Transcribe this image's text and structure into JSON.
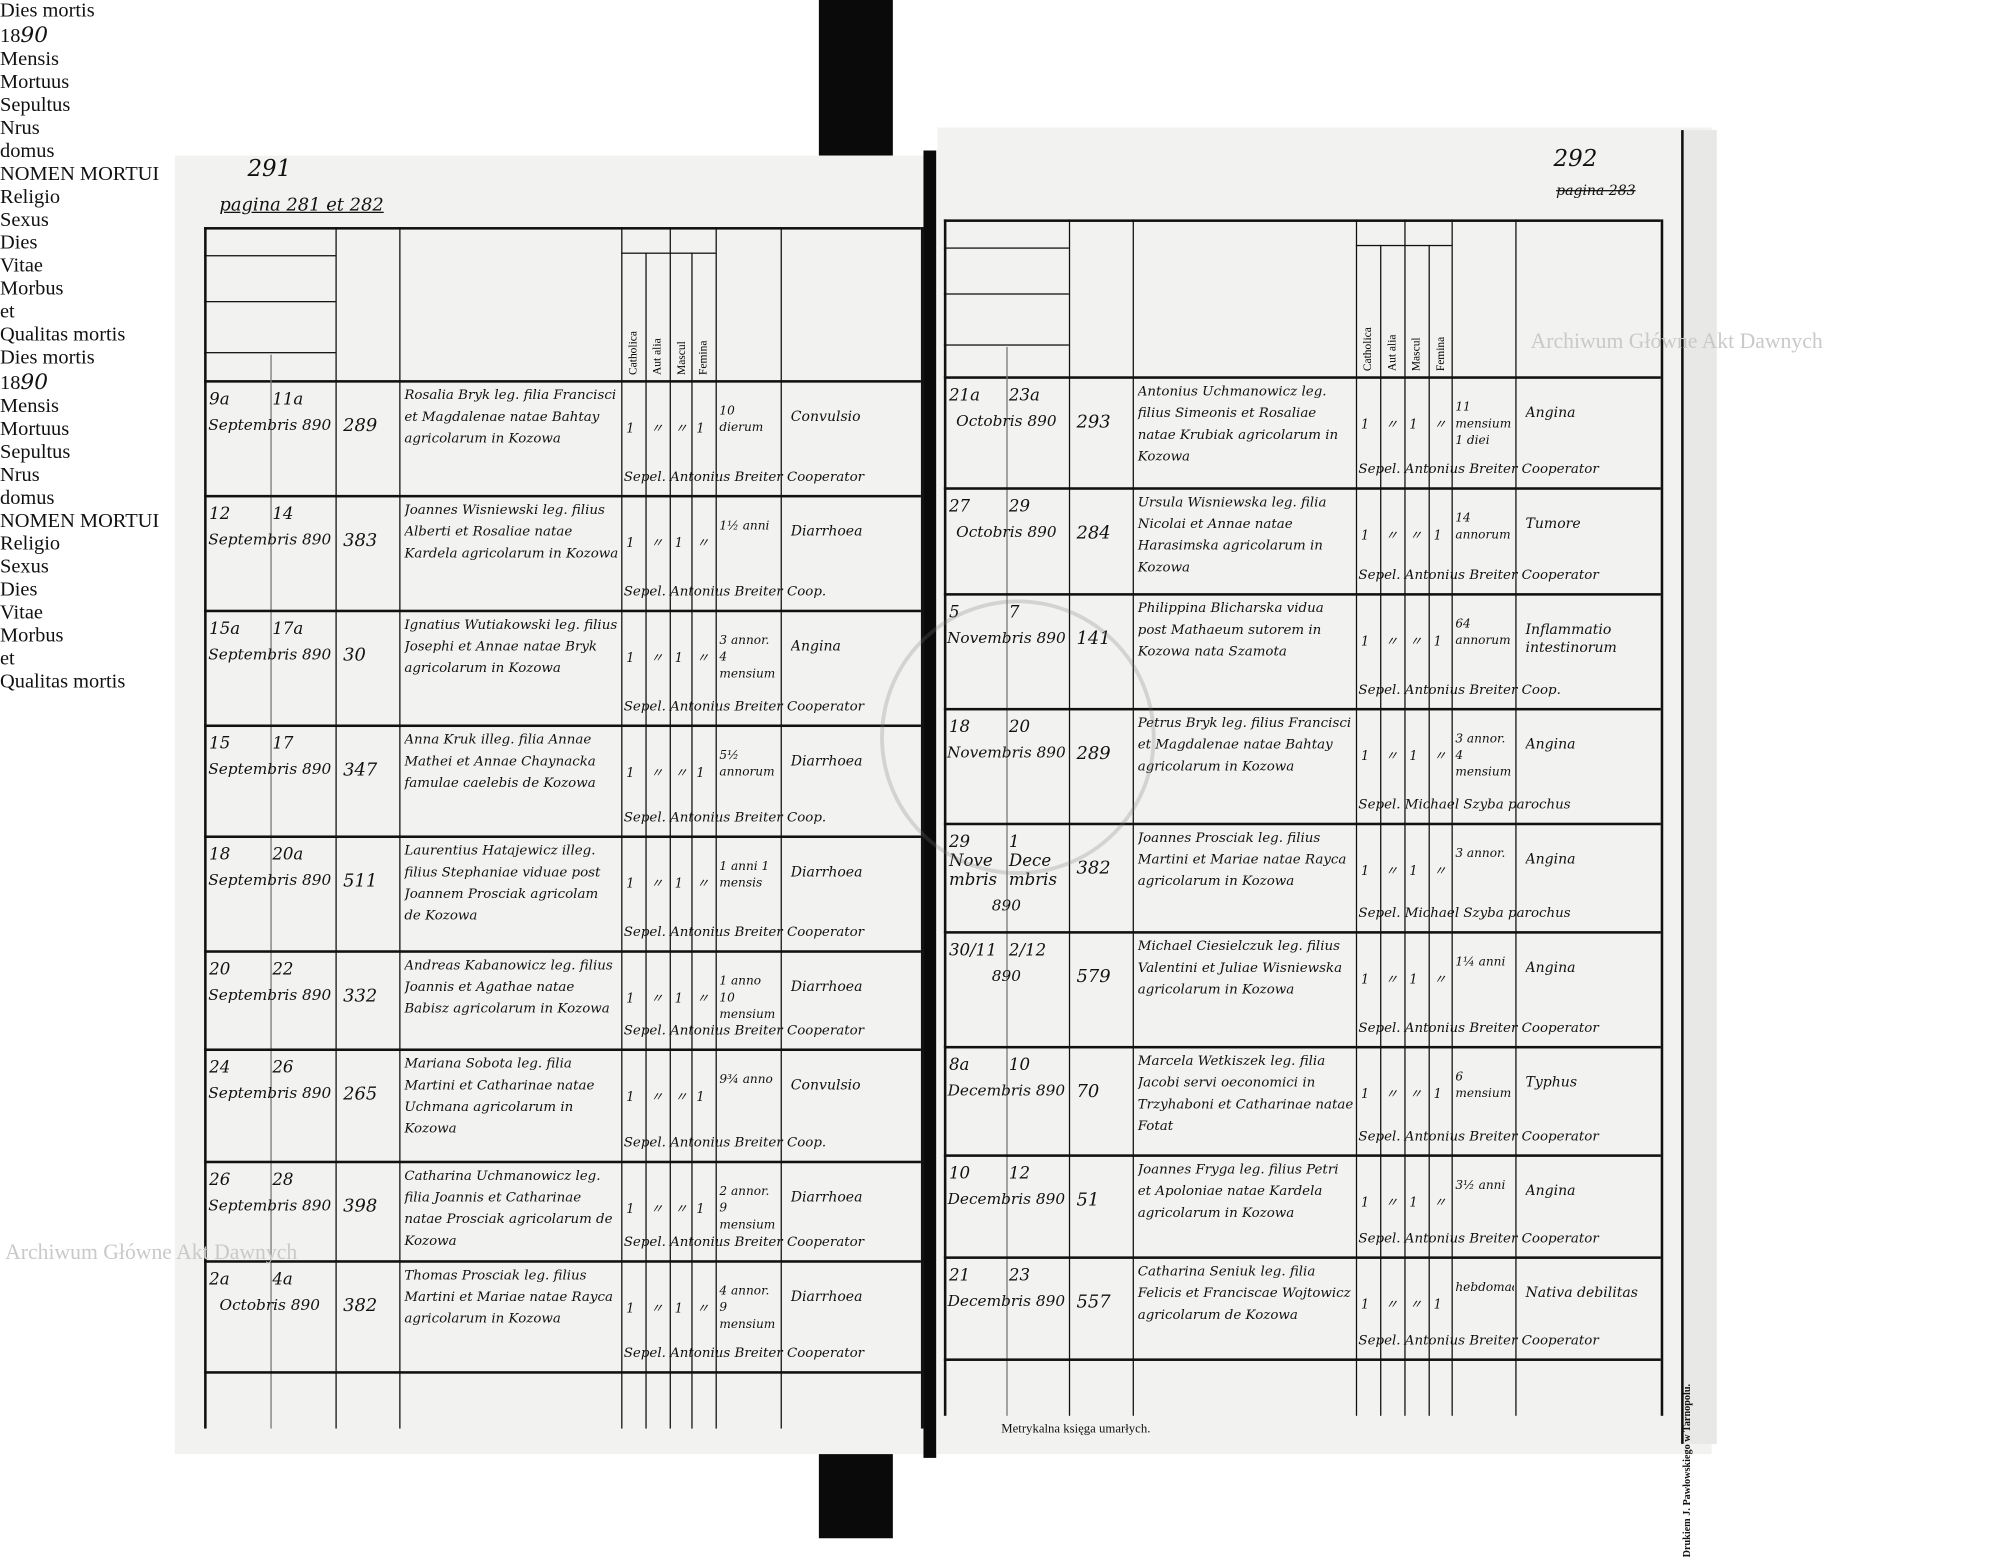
{
  "document": {
    "footer_title": "Metrykalna księga umarłych.",
    "printer_note": "Drukiem J. Pawłowskiego w Tarnopolu.",
    "watermark": "Archiwum Główne Akt Dawnych",
    "seal_text": "ARCHIWUM GŁÓWNE AKT DAWNYCH"
  },
  "header": {
    "dies_mortis": "Dies mortis",
    "year_printed": "18",
    "year_hand": "90",
    "mensis": "Mensis",
    "mortuus": "Mortuus",
    "sepultus": "Sepultus",
    "nrus": "Nrus",
    "domus": "domus",
    "nomen": "NOMEN MORTUI",
    "religio": "Religio",
    "sexus": "Sexus",
    "catholica": "Catholica",
    "aut_alia": "Aut alia",
    "mascul": "Mascul",
    "femina": "Femina",
    "dies": "Dies",
    "vitae": "Vitae",
    "morbus": "Morbus",
    "et": "et",
    "qualitas": "Qualitas mortis"
  },
  "left_page": {
    "folio": "291",
    "pagina": "pagina 281 et 282",
    "rows": [
      {
        "mortuus": "9a",
        "sepultus": "11a",
        "mensis": "Septembris 890",
        "nrus": "289",
        "nomen": "Rosalia Bryk leg. filia Francisci et Magdalenae natae Bahtay agricolarum in Kozowa",
        "cath": "1",
        "alia": "〃",
        "masc": "〃",
        "fem": "1",
        "vitae": "10 dierum",
        "morbus": "Convulsio",
        "sepel": "Sepel. Antonius Breiter Cooperator"
      },
      {
        "mortuus": "12",
        "sepultus": "14",
        "mensis": "Septembris 890",
        "nrus": "383",
        "nomen": "Joannes Wisniewski leg. filius Alberti et Rosaliae natae Kardela agricolarum in Kozowa",
        "cath": "1",
        "alia": "〃",
        "masc": "1",
        "fem": "〃",
        "vitae": "1½ anni",
        "morbus": "Diarrhoea",
        "sepel": "Sepel. Antonius Breiter Coop."
      },
      {
        "mortuus": "15a",
        "sepultus": "17a",
        "mensis": "Septembris 890",
        "nrus": "30",
        "nomen": "Ignatius Wutiakowski leg. filius Josephi et Annae natae Bryk agricolarum in Kozowa",
        "cath": "1",
        "alia": "〃",
        "masc": "1",
        "fem": "〃",
        "vitae": "3 annor. 4 mensium",
        "morbus": "Angina",
        "sepel": "Sepel. Antonius Breiter Cooperator"
      },
      {
        "mortuus": "15",
        "sepultus": "17",
        "mensis": "Septembris 890",
        "nrus": "347",
        "nomen": "Anna Kruk illeg. filia Annae Mathei et Annae Chaynacka famulae caelebis de Kozowa",
        "cath": "1",
        "alia": "〃",
        "masc": "〃",
        "fem": "1",
        "vitae": "5½ annorum",
        "morbus": "Diarrhoea",
        "sepel": "Sepel. Antonius Breiter Coop."
      },
      {
        "mortuus": "18",
        "sepultus": "20a",
        "mensis": "Septembris 890",
        "nrus": "511",
        "nomen": "Laurentius Hatajewicz illeg. filius Stephaniae viduae post Joannem Prosciak agricolam de Kozowa",
        "cath": "1",
        "alia": "〃",
        "masc": "1",
        "fem": "〃",
        "vitae": "1 anni 1 mensis",
        "morbus": "Diarrhoea",
        "sepel": "Sepel. Antonius Breiter Cooperator"
      },
      {
        "mortuus": "20",
        "sepultus": "22",
        "mensis": "Septembris 890",
        "nrus": "332",
        "nomen": "Andreas Kabanowicz leg. filius Joannis et Agathae natae Babisz agricolarum in Kozowa",
        "cath": "1",
        "alia": "〃",
        "masc": "1",
        "fem": "〃",
        "vitae": "1 anno 10 mensium",
        "morbus": "Diarrhoea",
        "sepel": "Sepel. Antonius Breiter Cooperator"
      },
      {
        "mortuus": "24",
        "sepultus": "26",
        "mensis": "Septembris 890",
        "nrus": "265",
        "nomen": "Mariana Sobota leg. filia Martini et Catharinae natae Uchmana agricolarum in Kozowa",
        "cath": "1",
        "alia": "〃",
        "masc": "〃",
        "fem": "1",
        "vitae": "9¾ anno",
        "morbus": "Convulsio",
        "sepel": "Sepel. Antonius Breiter Coop."
      },
      {
        "mortuus": "26",
        "sepultus": "28",
        "mensis": "Septembris 890",
        "nrus": "398",
        "nomen": "Catharina Uchmanowicz leg. filia Joannis et Catharinae natae Prosciak agricolarum de Kozowa",
        "cath": "1",
        "alia": "〃",
        "masc": "〃",
        "fem": "1",
        "vitae": "2 annor. 9 mensium",
        "morbus": "Diarrhoea",
        "sepel": "Sepel. Antonius Breiter Cooperator"
      },
      {
        "mortuus": "2a",
        "sepultus": "4a",
        "mensis": "Octobris 890",
        "nrus": "382",
        "nomen": "Thomas Prosciak leg. filius Martini et Mariae natae Rayca agricolarum in Kozowa",
        "cath": "1",
        "alia": "〃",
        "masc": "1",
        "fem": "〃",
        "vitae": "4 annor. 9 mensium",
        "morbus": "Diarrhoea",
        "sepel": "Sepel. Antonius Breiter Cooperator"
      }
    ]
  },
  "right_page": {
    "folio": "292",
    "pagina": "pagina 283",
    "rows": [
      {
        "mortuus": "21a",
        "sepultus": "23a",
        "mensis": "Octobris 890",
        "nrus": "293",
        "nomen": "Antonius Uchmanowicz leg. filius Simeonis et Rosaliae natae Krubiak agricolarum in Kozowa",
        "cath": "1",
        "alia": "〃",
        "masc": "1",
        "fem": "〃",
        "vitae": "11 mensium 1 diei",
        "morbus": "Angina",
        "sepel": "Sepel. Antonius Breiter Cooperator"
      },
      {
        "mortuus": "27",
        "sepultus": "29",
        "mensis": "Octobris 890",
        "nrus": "284",
        "nomen": "Ursula Wisniewska leg. filia Nicolai et Annae natae Harasimska agricolarum in Kozowa",
        "cath": "1",
        "alia": "〃",
        "masc": "〃",
        "fem": "1",
        "vitae": "14 annorum",
        "morbus": "Tumore",
        "sepel": "Sepel. Antonius Breiter Cooperator"
      },
      {
        "mortuus": "5",
        "sepultus": "7",
        "mensis": "Novembris 890",
        "nrus": "141",
        "nomen": "Philippina Blicharska vidua post Mathaeum sutorem in Kozowa nata Szamota",
        "cath": "1",
        "alia": "〃",
        "masc": "〃",
        "fem": "1",
        "vitae": "64 annorum",
        "morbus": "Inflammatio intestinorum",
        "sepel": "Sepel. Antonius Breiter Coop."
      },
      {
        "mortuus": "18",
        "sepultus": "20",
        "mensis": "Novembris 890",
        "nrus": "289",
        "nomen": "Petrus Bryk leg. filius Francisci et Magdalenae natae Bahtay agricolarum in Kozowa",
        "cath": "1",
        "alia": "〃",
        "masc": "1",
        "fem": "〃",
        "vitae": "3 annor. 4 mensium",
        "morbus": "Angina",
        "sepel": "Sepel. Michael Szyba parochus"
      },
      {
        "mortuus": "29 Novembris",
        "sepultus": "1 Decembris",
        "mensis": "890",
        "nrus": "382",
        "nomen": "Joannes Prosciak leg. filius Martini et Mariae natae Rayca agricolarum in Kozowa",
        "cath": "1",
        "alia": "〃",
        "masc": "1",
        "fem": "〃",
        "vitae": "3 annor.",
        "morbus": "Angina",
        "sepel": "Sepel. Michael Szyba parochus"
      },
      {
        "mortuus": "30/11",
        "sepultus": "2/12",
        "mensis": "890",
        "nrus": "579",
        "nomen": "Michael Ciesielczuk leg. filius Valentini et Juliae Wisniewska agricolarum in Kozowa",
        "cath": "1",
        "alia": "〃",
        "masc": "1",
        "fem": "〃",
        "vitae": "1¼ anni",
        "morbus": "Angina",
        "sepel": "Sepel. Antonius Breiter Cooperator"
      },
      {
        "mortuus": "8a",
        "sepultus": "10",
        "mensis": "Decembris 890",
        "nrus": "70",
        "nomen": "Marcela Wetkiszek leg. filia Jacobi servi oeconomici in Trzyhaboni et Catharinae natae Fotat",
        "cath": "1",
        "alia": "〃",
        "masc": "〃",
        "fem": "1",
        "vitae": "6 mensium",
        "morbus": "Typhus",
        "sepel": "Sepel. Antonius Breiter Cooperator"
      },
      {
        "mortuus": "10",
        "sepultus": "12",
        "mensis": "Decembris 890",
        "nrus": "51",
        "nomen": "Joannes Fryga leg. filius Petri et Apoloniae natae Kardela agricolarum in Kozowa",
        "cath": "1",
        "alia": "〃",
        "masc": "1",
        "fem": "〃",
        "vitae": "3½ anni",
        "morbus": "Angina",
        "sepel": "Sepel. Antonius Breiter Cooperator"
      },
      {
        "mortuus": "21",
        "sepultus": "23",
        "mensis": "Decembris 890",
        "nrus": "557",
        "nomen": "Catharina Seniuk leg. filia Felicis et Franciscae Wojtowicz agricolarum de Kozowa",
        "cath": "1",
        "alia": "〃",
        "masc": "〃",
        "fem": "1",
        "vitae": "hebdomad.",
        "morbus": "Nativa debilitas",
        "sepel": "Sepel. Antonius Breiter Cooperator"
      }
    ]
  }
}
